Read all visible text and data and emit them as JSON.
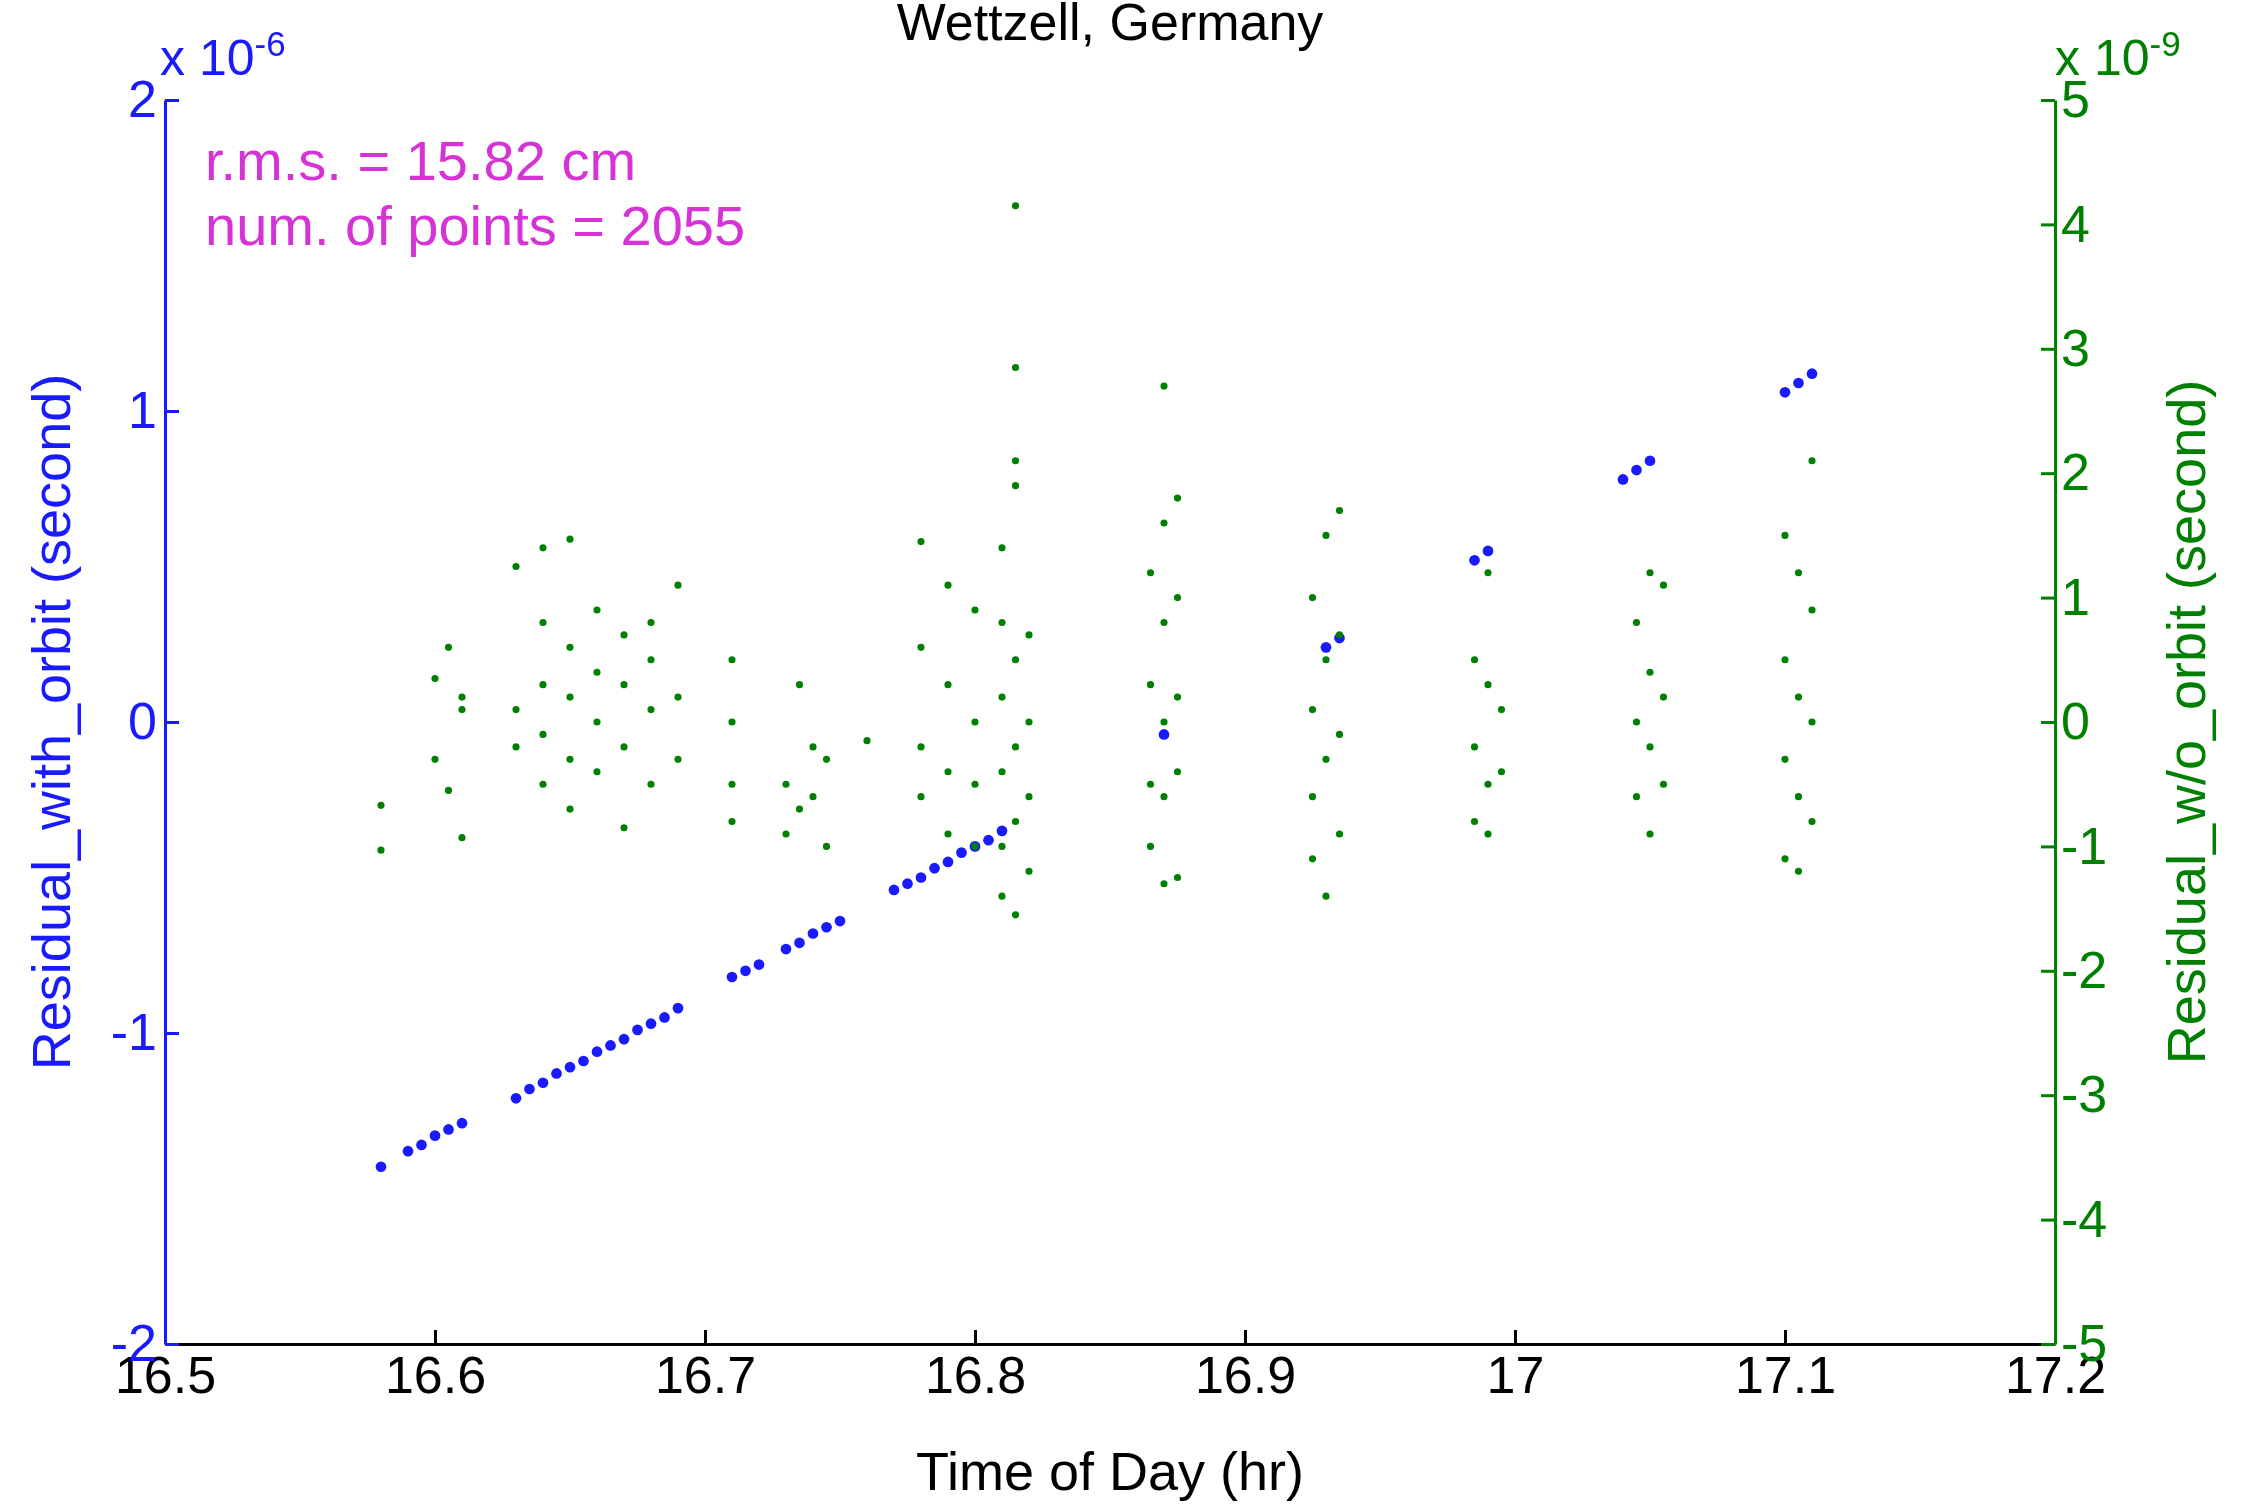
{
  "chart_data": {
    "type": "scatter",
    "title": "Wettzell, Germany",
    "xlabel": "Time of Day (hr)",
    "ylabel": "Residual_with_orbit (second)",
    "y2label": "Residual_w/o_orbit (second)",
    "annotations": [
      "r.m.s. = 15.82 cm",
      "num. of points = 2055",
      "x 10$^{-6}$",
      "x 10$^{-9}$"
    ],
    "xlim": [
      16.5,
      17.2
    ],
    "xticks": [
      16.5,
      16.6,
      16.7,
      16.8,
      16.9,
      17,
      17.1,
      17.2
    ],
    "ylim": [
      -2,
      2
    ],
    "yticks": [
      -2,
      -1,
      0,
      1,
      2
    ],
    "y2lim": [
      -5,
      5
    ],
    "y2ticks": [
      -5,
      -4,
      -3,
      -2,
      -1,
      0,
      1,
      2,
      3,
      4,
      5
    ],
    "marker": "circle",
    "grid": false,
    "series": [
      {
        "color": "#1a1aff",
        "x": [
          16.58,
          16.59,
          16.595,
          16.6,
          16.605,
          16.61,
          16.63,
          16.635,
          16.64,
          16.645,
          16.65,
          16.655,
          16.66,
          16.665,
          16.67,
          16.675,
          16.68,
          16.685,
          16.69,
          16.71,
          16.715,
          16.72,
          16.73,
          16.735,
          16.74,
          16.745,
          16.75,
          16.77,
          16.775,
          16.78,
          16.785,
          16.79,
          16.795,
          16.8,
          16.805,
          16.81,
          16.87,
          16.93,
          16.935,
          16.985,
          16.99,
          17.04,
          17.045,
          17.05,
          17.1,
          17.105,
          17.11
        ],
        "values": [
          -1.43,
          -1.38,
          -1.36,
          -1.33,
          -1.31,
          -1.29,
          -1.21,
          -1.18,
          -1.16,
          -1.13,
          -1.11,
          -1.09,
          -1.06,
          -1.04,
          -1.02,
          -0.99,
          -0.97,
          -0.95,
          -0.92,
          -0.82,
          -0.8,
          -0.78,
          -0.73,
          -0.71,
          -0.68,
          -0.66,
          -0.64,
          -0.54,
          -0.52,
          -0.5,
          -0.47,
          -0.45,
          -0.42,
          -0.4,
          -0.38,
          -0.35,
          -0.04,
          0.24,
          0.27,
          0.52,
          0.55,
          0.78,
          0.81,
          0.84,
          1.06,
          1.09,
          1.12
        ]
      },
      {
        "color": "#008000",
        "axis": "y2",
        "x": [
          16.58,
          16.58,
          16.6,
          16.6,
          16.605,
          16.605,
          16.61,
          16.61,
          16.61,
          16.63,
          16.63,
          16.63,
          16.64,
          16.64,
          16.64,
          16.64,
          16.64,
          16.65,
          16.65,
          16.65,
          16.65,
          16.65,
          16.66,
          16.66,
          16.66,
          16.66,
          16.67,
          16.67,
          16.67,
          16.67,
          16.68,
          16.68,
          16.68,
          16.68,
          16.69,
          16.69,
          16.69,
          16.71,
          16.71,
          16.71,
          16.71,
          16.73,
          16.73,
          16.735,
          16.735,
          16.74,
          16.74,
          16.745,
          16.745,
          16.76,
          16.78,
          16.78,
          16.78,
          16.78,
          16.79,
          16.79,
          16.79,
          16.79,
          16.8,
          16.8,
          16.8,
          16.8,
          16.81,
          16.81,
          16.81,
          16.81,
          16.81,
          16.81,
          16.815,
          16.815,
          16.815,
          16.815,
          16.815,
          16.815,
          16.815,
          16.815,
          16.82,
          16.82,
          16.82,
          16.82,
          16.865,
          16.865,
          16.865,
          16.865,
          16.87,
          16.87,
          16.87,
          16.87,
          16.87,
          16.87,
          16.875,
          16.875,
          16.875,
          16.875,
          16.875,
          16.925,
          16.925,
          16.925,
          16.925,
          16.93,
          16.93,
          16.93,
          16.93,
          16.935,
          16.935,
          16.935,
          16.935,
          16.985,
          16.985,
          16.985,
          16.99,
          16.99,
          16.99,
          16.99,
          16.995,
          16.995,
          17.045,
          17.045,
          17.045,
          17.05,
          17.05,
          17.05,
          17.05,
          17.055,
          17.055,
          17.055,
          17.1,
          17.1,
          17.1,
          17.1,
          17.105,
          17.105,
          17.105,
          17.105,
          17.11,
          17.11,
          17.11,
          17.11
        ],
        "values": [
          -0.67,
          -1.03,
          0.35,
          -0.3,
          0.6,
          -0.55,
          0.2,
          -0.93,
          0.1,
          1.25,
          0.1,
          -0.2,
          1.4,
          0.8,
          0.3,
          -0.1,
          -0.5,
          1.47,
          0.6,
          0.2,
          -0.3,
          -0.7,
          0.9,
          0.4,
          0,
          -0.4,
          0.7,
          0.3,
          -0.2,
          -0.85,
          0.8,
          0.5,
          0.1,
          -0.5,
          1.1,
          0.2,
          -0.3,
          0.5,
          0,
          -0.5,
          -0.8,
          -0.5,
          -0.9,
          0.3,
          -0.7,
          -0.2,
          -0.6,
          -0.3,
          -1.0,
          -0.15,
          1.45,
          0.6,
          -0.2,
          -0.6,
          1.1,
          0.3,
          -0.4,
          -0.9,
          0.9,
          0,
          -0.5,
          -1.0,
          1.4,
          0.8,
          0.2,
          -0.4,
          -1.0,
          -1.4,
          4.15,
          2.85,
          2.1,
          1.9,
          0.5,
          -0.2,
          -0.8,
          -1.55,
          0.7,
          0,
          -0.6,
          -1.2,
          1.2,
          0.3,
          -0.5,
          -1.0,
          2.7,
          1.6,
          0.8,
          0,
          -0.6,
          -1.3,
          1.8,
          1.0,
          0.2,
          -0.4,
          -1.25,
          1.0,
          0.1,
          -0.6,
          -1.1,
          1.5,
          0.5,
          -0.3,
          -1.4,
          1.7,
          0.7,
          -0.1,
          -0.9,
          0.5,
          -0.2,
          -0.8,
          1.2,
          0.3,
          -0.5,
          -0.9,
          0.1,
          -0.4,
          0.8,
          0,
          -0.6,
          1.2,
          0.4,
          -0.2,
          -0.9,
          1.1,
          0.2,
          -0.5,
          1.5,
          0.5,
          -0.3,
          -1.1,
          1.2,
          0.2,
          -0.6,
          -1.2,
          2.1,
          0.9,
          0,
          -0.8
        ]
      }
    ]
  }
}
